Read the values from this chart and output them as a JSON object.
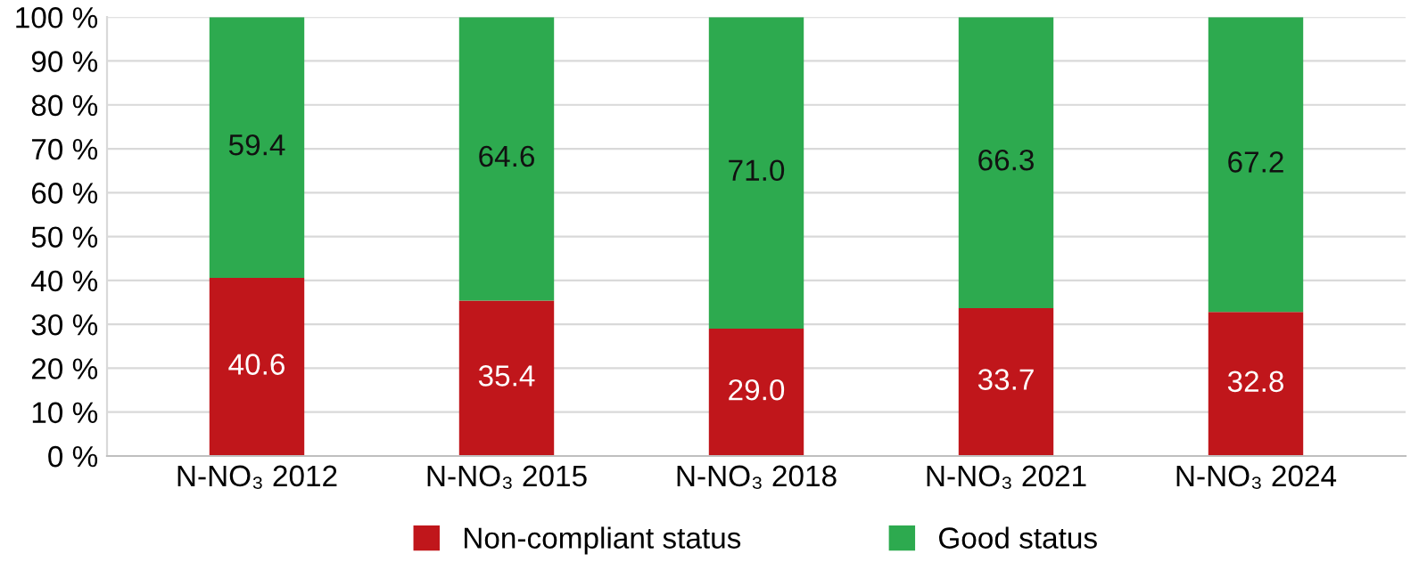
{
  "chart_data": {
    "type": "bar",
    "stacked": true,
    "categories": [
      "N-NO₃ 2012",
      "N-NO₃ 2015",
      "N-NO₃ 2018",
      "N-NO₃ 2021",
      "N-NO₃ 2024"
    ],
    "series": [
      {
        "name": "Non-compliant status",
        "color": "#c0161b",
        "values": [
          40.6,
          35.4,
          29.0,
          33.7,
          32.8
        ],
        "value_labels": [
          "40.6",
          "35.4",
          "29.0",
          "33.7",
          "32.8"
        ]
      },
      {
        "name": "Good status",
        "color": "#2daa4f",
        "values": [
          59.4,
          64.6,
          71.0,
          66.3,
          67.2
        ],
        "value_labels": [
          "59.4",
          "64.6",
          "71.0",
          "66.3",
          "67.2"
        ]
      }
    ],
    "ylim": [
      0,
      100
    ],
    "yticks": [
      {
        "value": 0,
        "label": "0 %"
      },
      {
        "value": 10,
        "label": "10 %"
      },
      {
        "value": 20,
        "label": "20 %"
      },
      {
        "value": 30,
        "label": "30 %"
      },
      {
        "value": 40,
        "label": "40 %"
      },
      {
        "value": 50,
        "label": "50 %"
      },
      {
        "value": 60,
        "label": "60 %"
      },
      {
        "value": 70,
        "label": "70 %"
      },
      {
        "value": 80,
        "label": "80 %"
      },
      {
        "value": 90,
        "label": "90 %"
      },
      {
        "value": 100,
        "label": "100 %"
      }
    ],
    "grid": "y",
    "legend": "bottom"
  }
}
